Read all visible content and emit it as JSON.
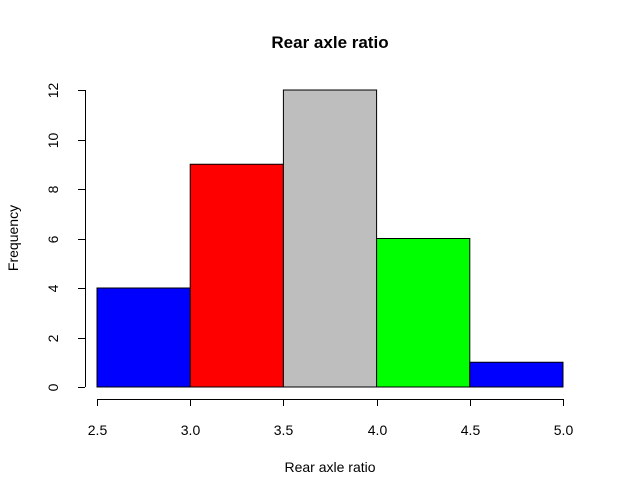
{
  "chart_data": {
    "type": "bar",
    "subtype": "histogram",
    "title": "Rear axle ratio",
    "xlabel": "Rear axle ratio",
    "ylabel": "Frequency",
    "bins": [
      {
        "start": 2.5,
        "end": 3.0,
        "count": 4,
        "color": "#0000FF"
      },
      {
        "start": 3.0,
        "end": 3.5,
        "count": 9,
        "color": "#FF0000"
      },
      {
        "start": 3.5,
        "end": 4.0,
        "count": 12,
        "color": "#BEBEBE"
      },
      {
        "start": 4.0,
        "end": 4.5,
        "count": 6,
        "color": "#00FF00"
      },
      {
        "start": 4.5,
        "end": 5.0,
        "count": 1,
        "color": "#0000FF"
      }
    ],
    "xlim": [
      2.5,
      5.0
    ],
    "ylim": [
      0,
      12
    ],
    "x_ticks": [
      "2.5",
      "3.0",
      "3.5",
      "4.0",
      "4.5",
      "5.0"
    ],
    "y_ticks": [
      "0",
      "2",
      "4",
      "6",
      "8",
      "10",
      "12"
    ],
    "grid": false,
    "legend": "none"
  }
}
